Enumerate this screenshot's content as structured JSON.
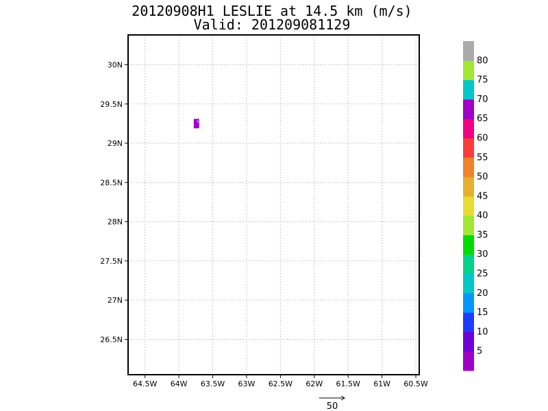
{
  "header": {
    "title": "20120908H1 LESLIE at 14.5 km (m/s)",
    "valid": "Valid: 201209081129"
  },
  "map": {
    "lon_range": [
      -64.75,
      -60.45
    ],
    "lat_range": [
      26.05,
      30.38
    ],
    "lon_ticks": [
      {
        "value": -64.5,
        "label": "64.5W"
      },
      {
        "value": -64.0,
        "label": "64W"
      },
      {
        "value": -63.5,
        "label": "63.5W"
      },
      {
        "value": -63.0,
        "label": "63W"
      },
      {
        "value": -62.5,
        "label": "62.5W"
      },
      {
        "value": -62.0,
        "label": "62W"
      },
      {
        "value": -61.5,
        "label": "61.5W"
      },
      {
        "value": -61.0,
        "label": "61W"
      },
      {
        "value": -60.5,
        "label": "60.5W"
      }
    ],
    "lat_ticks": [
      {
        "value": 30.0,
        "label": "30N"
      },
      {
        "value": 29.5,
        "label": "29.5N"
      },
      {
        "value": 29.0,
        "label": "29N"
      },
      {
        "value": 28.5,
        "label": "28.5N"
      },
      {
        "value": 28.0,
        "label": "28N"
      },
      {
        "value": 27.5,
        "label": "27.5N"
      },
      {
        "value": 27.0,
        "label": "27N"
      },
      {
        "value": 26.5,
        "label": "26.5N"
      }
    ],
    "grid": true,
    "data_patch": {
      "lon": [
        -63.78,
        -63.7
      ],
      "lat": [
        29.19,
        29.31
      ],
      "color": "#a000c8"
    }
  },
  "colorbar": {
    "colors": [
      "#a000c8",
      "#7000d8",
      "#1e3cff",
      "#0096ff",
      "#00c8c8",
      "#00d28c",
      "#00dc00",
      "#a0e632",
      "#e6dc32",
      "#e6af2d",
      "#f08228",
      "#fa3c3c",
      "#f00082",
      "#a000c8",
      "#00c8c8",
      "#a0e632",
      "#aaaaaa"
    ],
    "labels": [
      "5",
      "10",
      "15",
      "20",
      "25",
      "30",
      "35",
      "40",
      "45",
      "50",
      "55",
      "60",
      "65",
      "70",
      "75",
      "80"
    ]
  },
  "vector_key": {
    "label": "50"
  }
}
